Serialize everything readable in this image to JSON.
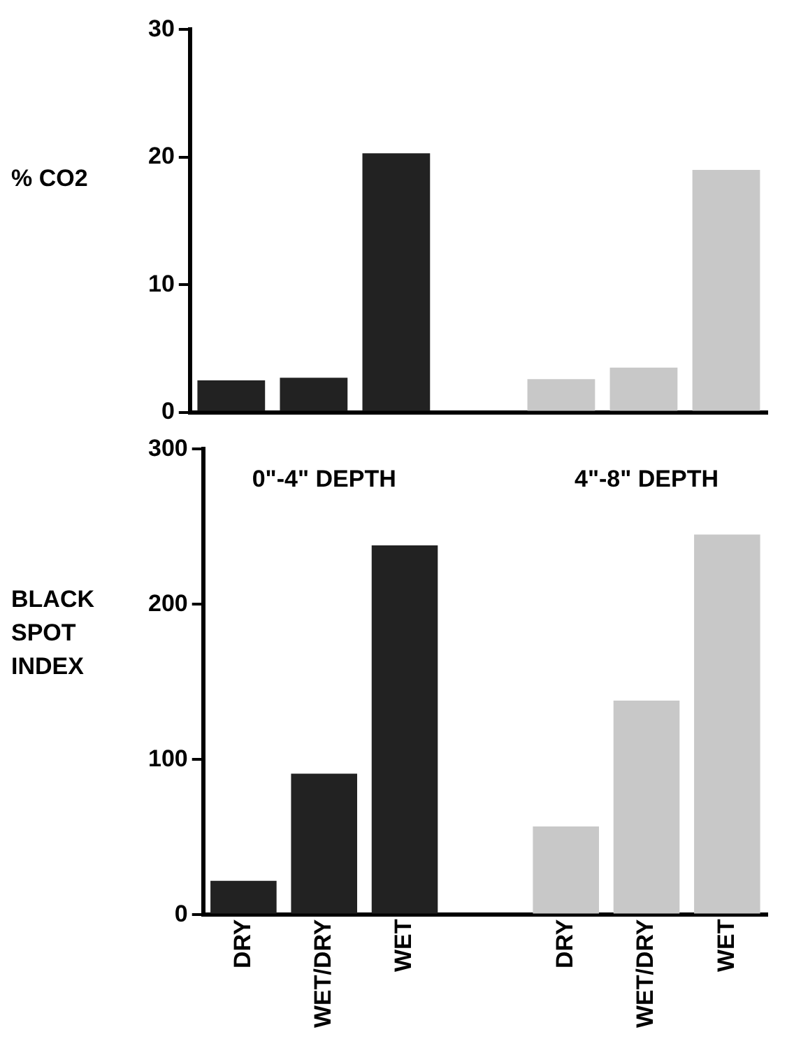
{
  "chart_data": [
    {
      "type": "bar",
      "ylabel": "% CO2",
      "categories": [
        null,
        null,
        null,
        null,
        null,
        null,
        null
      ],
      "ylim": [
        0,
        30
      ],
      "yticks": [
        0,
        10,
        20,
        30
      ],
      "tick_labels": "y",
      "grid": false,
      "series": [
        {
          "color": "#222222",
          "values": [
            2.5,
            2.7,
            20.3,
            null,
            null,
            null,
            null
          ]
        },
        {
          "color": "#c8c8c8",
          "values": [
            null,
            null,
            null,
            null,
            2.6,
            3.5,
            19.0
          ]
        }
      ]
    },
    {
      "type": "bar",
      "ylabel": "BLACK SPOT INDEX",
      "categories": [
        "DRY",
        "WET/DRY",
        "WET",
        null,
        "DRY",
        "WET/DRY",
        "WET"
      ],
      "ylim": [
        0,
        300
      ],
      "yticks": [
        0,
        100,
        200,
        300
      ],
      "grid": false,
      "series": [
        {
          "name": "0\"-4\" DEPTH",
          "color": "#222222",
          "values": [
            22,
            91,
            238,
            null,
            null,
            null,
            null
          ]
        },
        {
          "name": "4\"-8\" DEPTH",
          "color": "#c8c8c8",
          "values": [
            null,
            null,
            null,
            null,
            57,
            138,
            245
          ]
        }
      ]
    }
  ]
}
